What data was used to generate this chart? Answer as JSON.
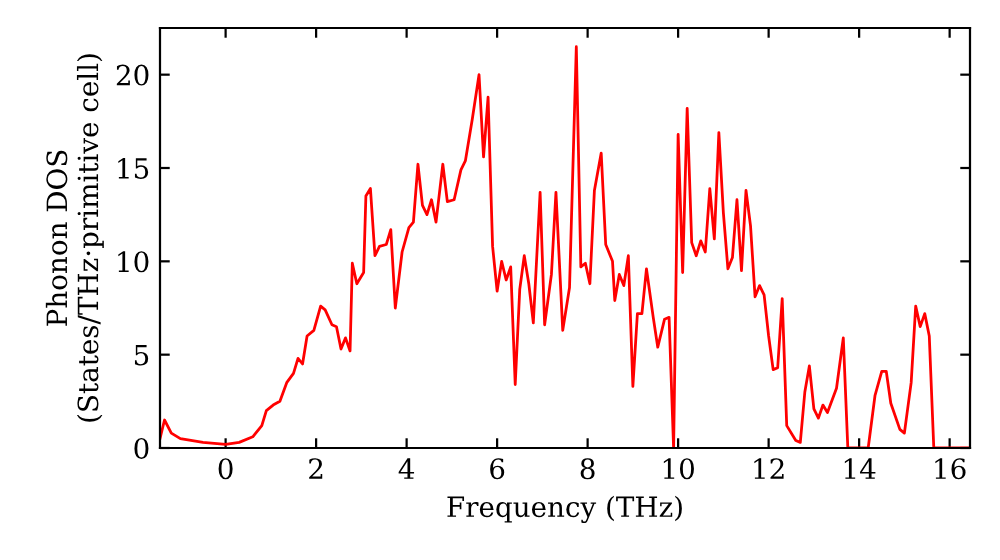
{
  "chart_data": {
    "type": "line",
    "xlabel": "Frequency (THz)",
    "ylabel": "Phonon DOS\n(States/THz·primitive cell)",
    "xlim": [
      -1.45,
      16.45
    ],
    "ylim": [
      0,
      22.5
    ],
    "xticks": [
      0,
      2,
      4,
      6,
      8,
      10,
      12,
      14,
      16
    ],
    "yticks": [
      0,
      5,
      10,
      15,
      20
    ],
    "grid": false,
    "series": [
      {
        "color": "#ff0000",
        "x": [
          -1.45,
          -1.35,
          -1.2,
          -1.0,
          -0.5,
          0,
          0.3,
          0.6,
          0.8,
          0.9,
          1.05,
          1.2,
          1.35,
          1.5,
          1.6,
          1.7,
          1.8,
          1.95,
          2.1,
          2.2,
          2.35,
          2.45,
          2.55,
          2.65,
          2.75,
          2.8,
          2.9,
          3.05,
          3.1,
          3.2,
          3.3,
          3.4,
          3.55,
          3.65,
          3.75,
          3.9,
          4.05,
          4.15,
          4.25,
          4.35,
          4.45,
          4.55,
          4.65,
          4.8,
          4.9,
          5.05,
          5.2,
          5.3,
          5.45,
          5.6,
          5.7,
          5.8,
          5.9,
          6.0,
          6.1,
          6.2,
          6.3,
          6.4,
          6.5,
          6.6,
          6.7,
          6.8,
          6.95,
          7.05,
          7.2,
          7.3,
          7.45,
          7.6,
          7.75,
          7.85,
          7.95,
          8.05,
          8.15,
          8.3,
          8.4,
          8.55,
          8.6,
          8.7,
          8.8,
          8.9,
          9.0,
          9.1,
          9.2,
          9.3,
          9.45,
          9.55,
          9.7,
          9.8,
          9.9,
          10.0,
          10.1,
          10.2,
          10.3,
          10.4,
          10.5,
          10.6,
          10.7,
          10.8,
          10.9,
          11.0,
          11.1,
          11.2,
          11.3,
          11.4,
          11.5,
          11.6,
          11.7,
          11.8,
          11.9,
          12.0,
          12.1,
          12.2,
          12.3,
          12.4,
          12.6,
          12.7,
          12.8,
          12.9,
          13.0,
          13.1,
          13.2,
          13.3,
          13.5,
          13.65,
          13.75,
          14.2,
          14.35,
          14.5,
          14.6,
          14.7,
          14.9,
          15.0,
          15.15,
          15.25,
          15.35,
          15.45,
          15.55,
          15.65,
          16.45
        ],
        "values": [
          0.5,
          1.5,
          0.8,
          0.5,
          0.3,
          0.2,
          0.3,
          0.6,
          1.2,
          2.0,
          2.3,
          2.5,
          3.5,
          4.0,
          4.8,
          4.5,
          6.0,
          6.3,
          7.6,
          7.4,
          6.6,
          6.5,
          5.3,
          5.9,
          5.2,
          9.9,
          8.8,
          9.4,
          13.5,
          13.9,
          10.3,
          10.8,
          10.9,
          11.7,
          7.5,
          10.5,
          11.8,
          12.1,
          15.2,
          13.0,
          12.5,
          13.3,
          12.1,
          15.2,
          13.2,
          13.3,
          14.9,
          15.4,
          17.6,
          20.0,
          15.6,
          18.8,
          10.8,
          8.4,
          10.0,
          9.0,
          9.7,
          3.4,
          8.5,
          10.3,
          8.8,
          6.7,
          13.7,
          6.6,
          9.3,
          13.7,
          6.3,
          8.6,
          21.5,
          9.7,
          9.9,
          8.8,
          13.8,
          15.8,
          10.9,
          10.0,
          7.9,
          9.3,
          8.7,
          10.3,
          3.3,
          7.2,
          7.2,
          9.6,
          7.0,
          5.4,
          6.9,
          7.0,
          0.0,
          16.8,
          9.4,
          18.2,
          11.0,
          10.3,
          11.1,
          10.5,
          13.9,
          11.2,
          16.9,
          12.6,
          9.6,
          10.2,
          13.3,
          9.5,
          13.8,
          11.9,
          8.1,
          8.7,
          8.2,
          6.0,
          4.2,
          4.3,
          8.0,
          1.2,
          0.4,
          0.3,
          3.0,
          4.4,
          2.1,
          1.6,
          2.3,
          1.9,
          3.2,
          5.9,
          0.0,
          0.0,
          2.8,
          4.1,
          4.1,
          2.4,
          1.0,
          0.8,
          3.5,
          7.6,
          6.5,
          7.2,
          6.0,
          0.0,
          0.0
        ]
      }
    ]
  }
}
